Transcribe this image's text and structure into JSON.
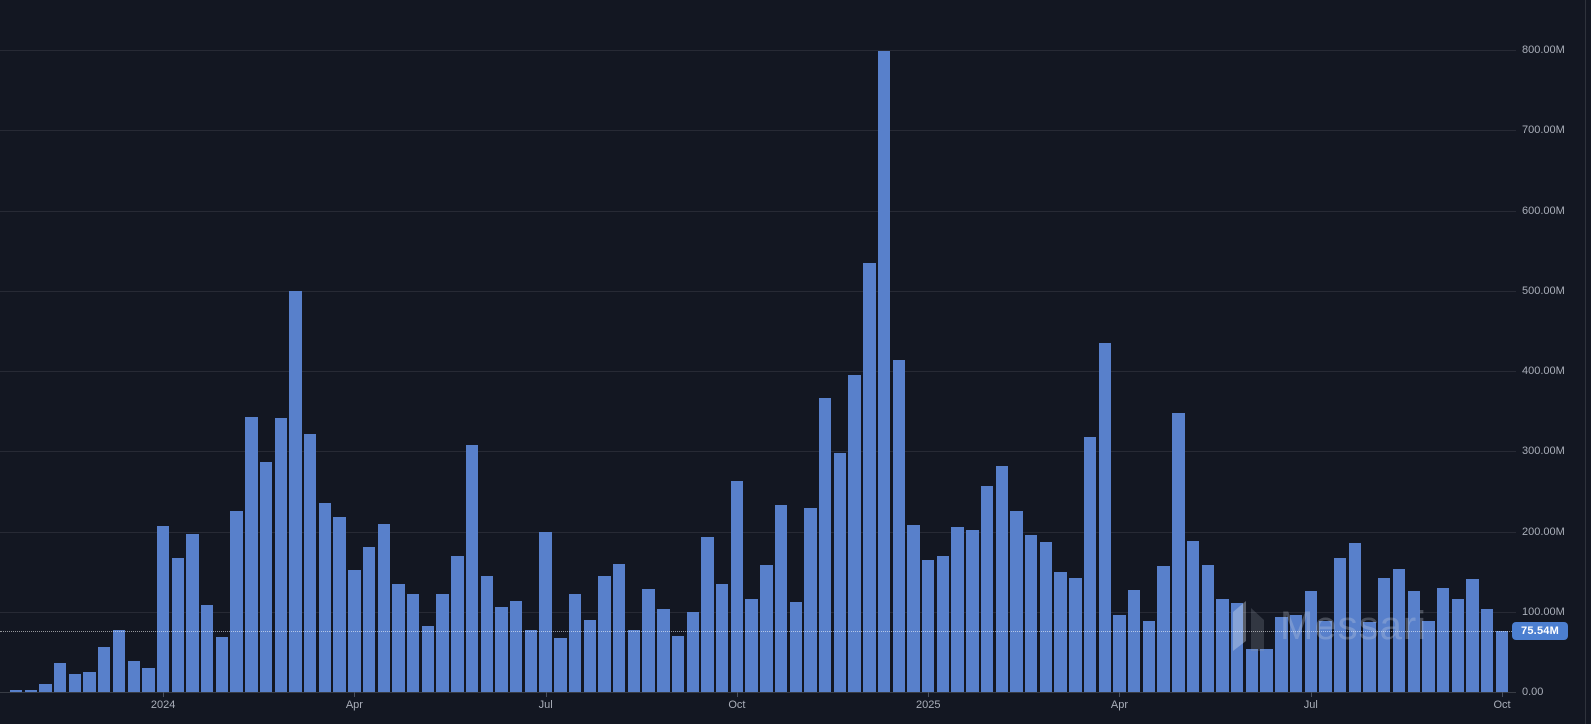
{
  "watermark": {
    "brand": "Messari"
  },
  "badge": {
    "text": "75.54M",
    "bg_color": "#4c7fd0",
    "text_color": "#ffffff"
  },
  "colors": {
    "background": "#131722",
    "bar": "#5880cb",
    "grid": "rgba(240,244,252,0.09)",
    "axis_text": "#a9aeb9",
    "dotted_line": "rgba(255,255,255,0.55)"
  },
  "chart_data": {
    "type": "bar",
    "title": "",
    "xlabel": "",
    "ylabel": "",
    "unit": "millions",
    "frequency": "weekly",
    "x_range": "Oct 2023 - Oct 2025",
    "ylim": [
      0,
      800
    ],
    "grid": true,
    "legend_position": "none",
    "y_ticks": [
      0,
      100,
      200,
      300,
      400,
      500,
      600,
      700,
      800
    ],
    "y_tick_labels": [
      "0.00",
      "100.00M",
      "200.00M",
      "300.00M",
      "400.00M",
      "500.00M",
      "600.00M",
      "700.00M",
      "800.00M"
    ],
    "x_ticks": [
      {
        "index": 10,
        "label": "2024"
      },
      {
        "index": 23,
        "label": "Apr"
      },
      {
        "index": 36,
        "label": "Jul"
      },
      {
        "index": 49,
        "label": "Oct"
      },
      {
        "index": 62,
        "label": "2025"
      },
      {
        "index": 75,
        "label": "Apr"
      },
      {
        "index": 88,
        "label": "Jul"
      },
      {
        "index": 101,
        "label": "Oct"
      }
    ],
    "values": [
      2,
      2,
      10,
      36,
      23,
      25,
      56,
      77,
      39,
      30,
      207,
      167,
      197,
      108,
      68,
      226,
      343,
      286,
      341,
      500,
      322,
      236,
      218,
      152,
      181,
      209,
      135,
      122,
      82,
      122,
      169,
      308,
      145,
      106,
      114,
      77,
      199,
      67,
      122,
      90,
      145,
      159,
      77,
      128,
      104,
      70,
      100,
      193,
      134,
      263,
      116,
      158,
      233,
      112,
      229,
      366,
      298,
      395,
      534,
      799,
      414,
      208,
      165,
      170,
      205,
      202,
      257,
      281,
      225,
      196,
      187,
      150,
      142,
      318,
      435,
      96,
      127,
      89,
      157,
      348,
      188,
      158,
      116,
      111,
      53,
      53,
      94,
      96,
      126,
      88,
      167,
      186,
      87,
      142,
      153,
      126,
      89,
      129,
      116,
      141,
      103,
      75.54
    ],
    "last_value": 75.54,
    "last_value_label": "75.54M"
  }
}
